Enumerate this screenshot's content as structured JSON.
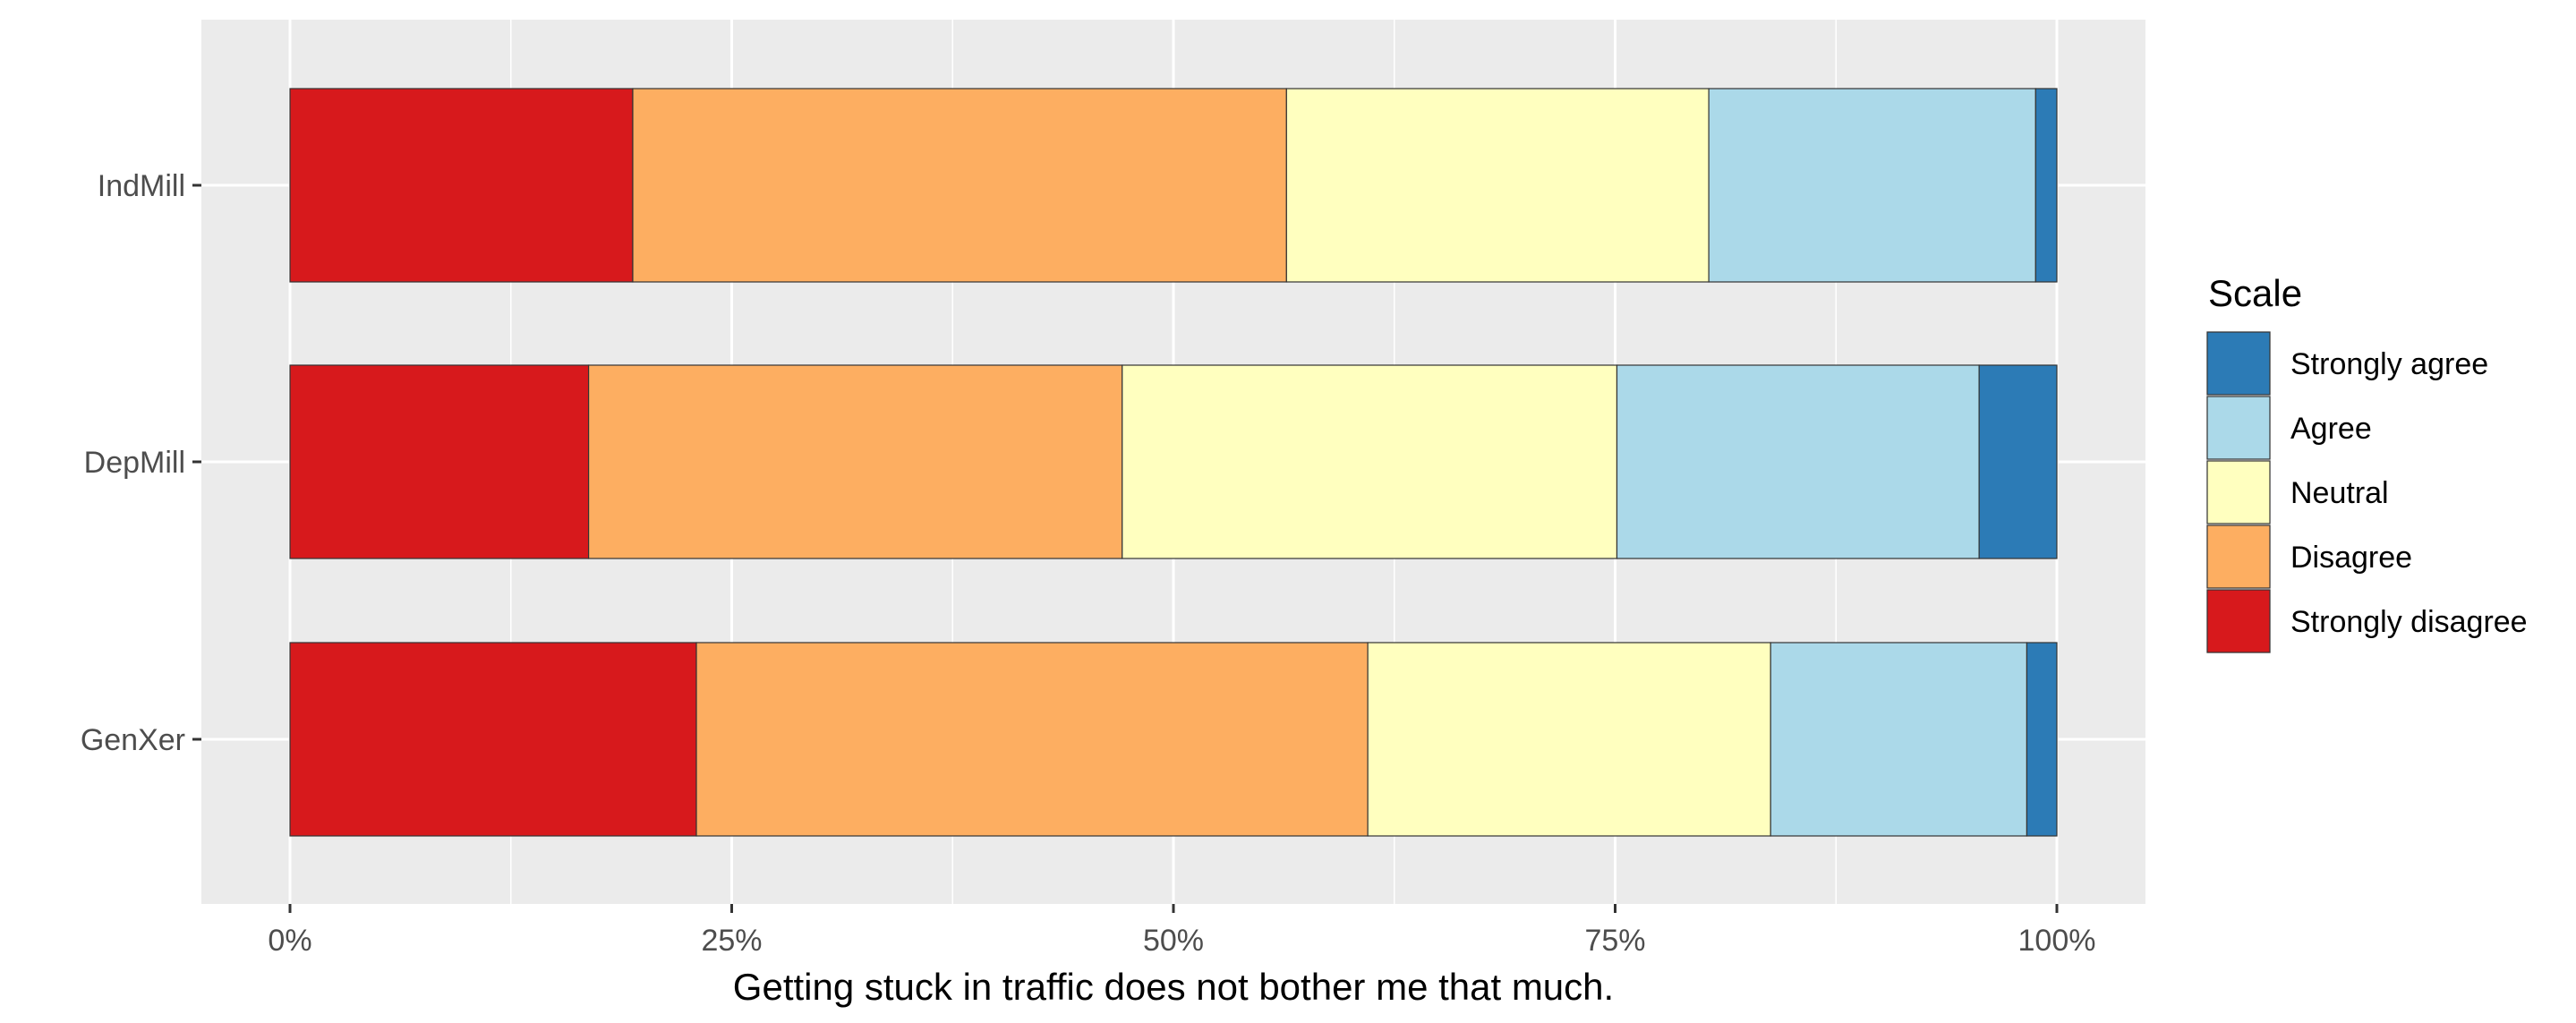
{
  "chart_data": {
    "type": "bar",
    "orientation": "horizontal",
    "stacked": true,
    "percent": true,
    "categories": [
      "IndMill",
      "DepMill",
      "GenXer"
    ],
    "series": [
      {
        "name": "Strongly disagree",
        "color": "#D7191C",
        "values": [
          19.4,
          16.9,
          23.0
        ]
      },
      {
        "name": "Disagree",
        "color": "#FDAE61",
        "values": [
          37.0,
          30.2,
          38.0
        ]
      },
      {
        "name": "Neutral",
        "color": "#FFFFBF",
        "values": [
          23.9,
          28.0,
          22.8
        ]
      },
      {
        "name": "Agree",
        "color": "#ABD9E9",
        "values": [
          18.5,
          20.5,
          14.5
        ]
      },
      {
        "name": "Strongly agree",
        "color": "#2C7BB6",
        "values": [
          1.2,
          4.4,
          1.7
        ]
      }
    ],
    "xlim": [
      0,
      100
    ],
    "xticks": [
      "0%",
      "25%",
      "50%",
      "75%",
      "100%"
    ],
    "xlabel": "Getting stuck in traffic does not bother me that much.",
    "ylabel": "",
    "grid": true,
    "panel_background": "#EBEBEB",
    "legend": {
      "title": "Scale",
      "position": "right",
      "order": [
        "Strongly agree",
        "Agree",
        "Neutral",
        "Disagree",
        "Strongly disagree"
      ]
    }
  }
}
